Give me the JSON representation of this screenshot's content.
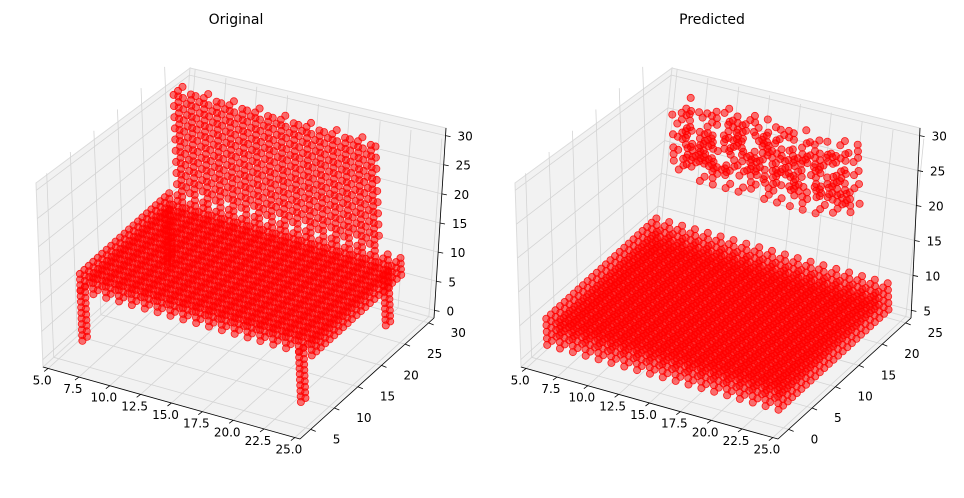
{
  "chart_data": [
    {
      "type": "scatter",
      "title": "Original",
      "xticks": [
        "5.0",
        "7.5",
        "10.0",
        "12.5",
        "15.0",
        "17.5",
        "20.0",
        "22.5",
        "25.0"
      ],
      "yticks": [
        "5",
        "10",
        "15",
        "20",
        "25",
        "30"
      ],
      "zticks": [
        "0",
        "5",
        "10",
        "15",
        "20",
        "25",
        "30"
      ],
      "xlim": [
        5,
        25
      ],
      "ylim": [
        2,
        32
      ],
      "zlim": [
        -1,
        32
      ],
      "grid": true,
      "marker_color": "#ff0000",
      "voxels": {
        "seat": {
          "x": [
            6,
            24
          ],
          "y": [
            8,
            28
          ],
          "z": [
            9,
            12
          ]
        },
        "backrest": {
          "x": [
            7,
            22
          ],
          "y": [
            27,
            29
          ],
          "z": [
            13,
            31
          ]
        },
        "legs": [
          {
            "x": 6,
            "y": 8,
            "z": [
              0,
              9
            ]
          },
          {
            "x": 23,
            "y": 8,
            "z": [
              0,
              9
            ]
          },
          {
            "x": 6,
            "y": 27,
            "z": [
              0,
              9
            ]
          },
          {
            "x": 23,
            "y": 27,
            "z": [
              0,
              9
            ]
          }
        ]
      }
    },
    {
      "type": "scatter",
      "title": "Predicted",
      "xticks": [
        "5.0",
        "7.5",
        "10.0",
        "12.5",
        "15.0",
        "17.5",
        "20.0",
        "22.5",
        "25.0"
      ],
      "yticks": [
        "0",
        "5",
        "10",
        "15",
        "20",
        "25"
      ],
      "zticks": [
        "5",
        "10",
        "15",
        "20",
        "25",
        "30"
      ],
      "xlim": [
        5,
        25
      ],
      "ylim": [
        -1,
        28
      ],
      "zlim": [
        3,
        31
      ],
      "grid": true,
      "marker_color": "#ff0000",
      "voxels": {
        "seat": {
          "x": [
            6,
            24
          ],
          "y": [
            2,
            26
          ],
          "z": [
            5,
            9
          ]
        },
        "backrest_fragment": {
          "x": [
            9,
            22
          ],
          "y": [
            22,
            26
          ],
          "z": [
            20,
            29
          ]
        }
      }
    }
  ]
}
